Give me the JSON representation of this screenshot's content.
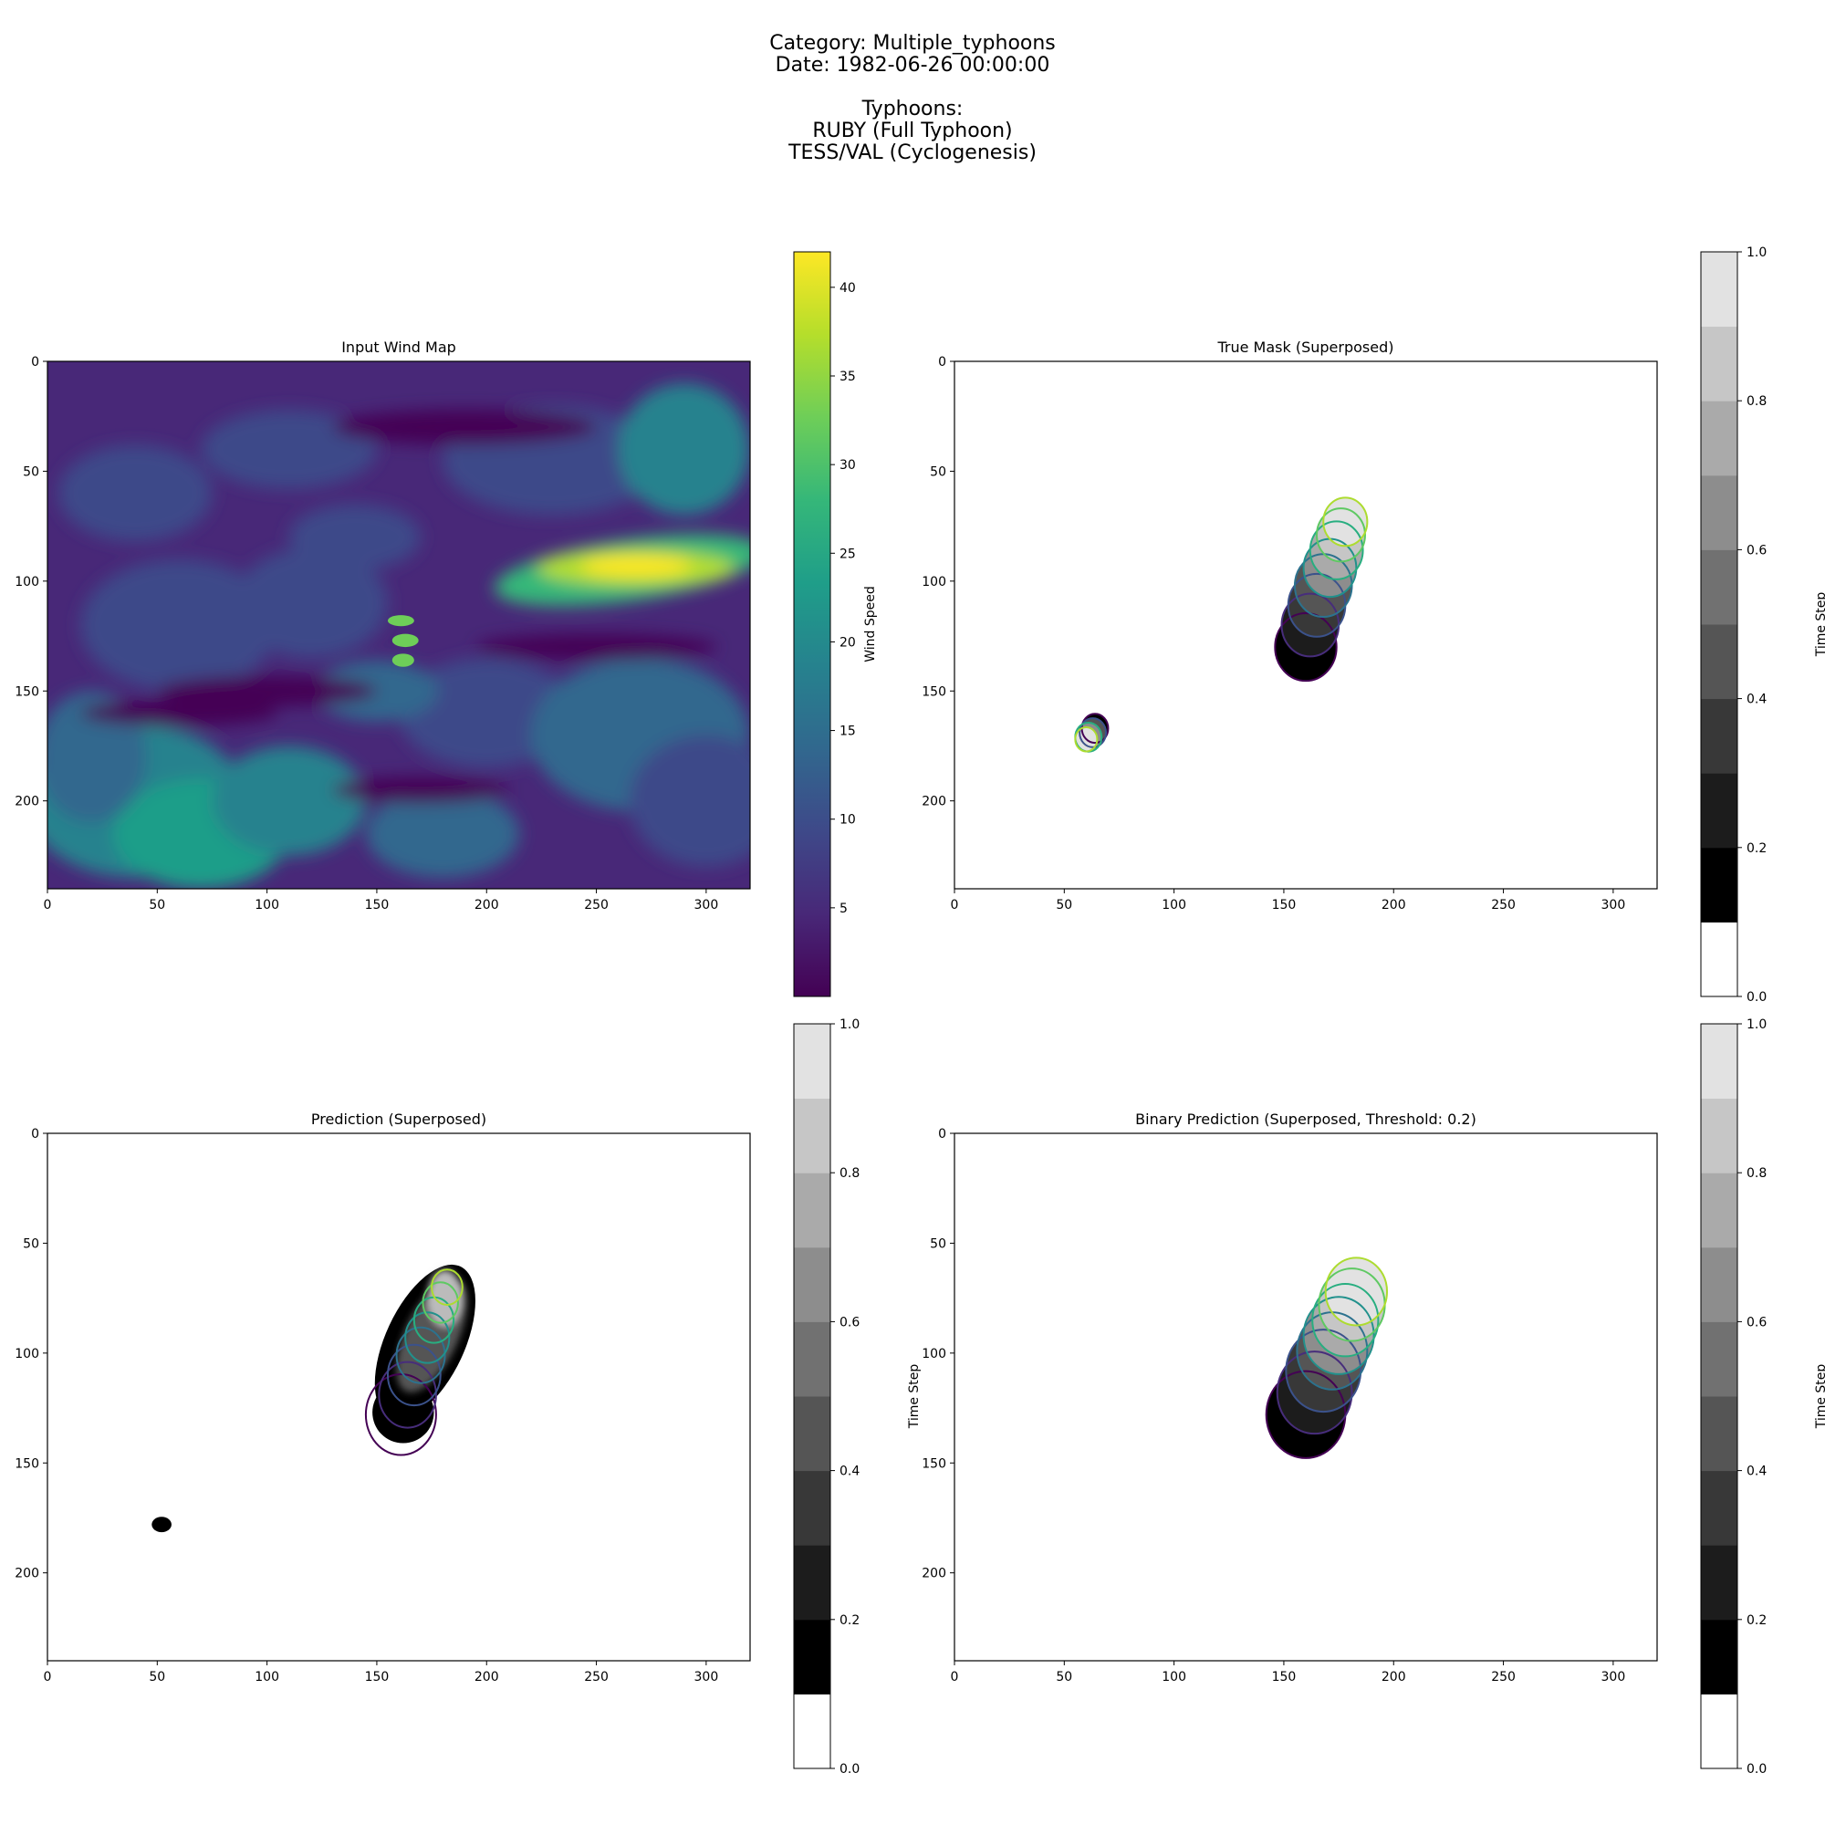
{
  "figure": {
    "title_lines": [
      "Category: Multiple_typhoons",
      "Date: 1982-06-26 00:00:00",
      "",
      "Typhoons:",
      "RUBY (Full Typhoon)",
      "TESS/VAL (Cyclogenesis)"
    ]
  },
  "colors": {
    "viridis": [
      "#440154",
      "#482878",
      "#3e4989",
      "#31688e",
      "#26828e",
      "#1f9e89",
      "#35b779",
      "#6ece58",
      "#b5de2b",
      "#fde725"
    ],
    "contour_steps": [
      "#440154",
      "#472d7b",
      "#3b528b",
      "#2c728e",
      "#21918c",
      "#28ae80",
      "#5ec962",
      "#addc30"
    ],
    "grey_bands": [
      "#ffffff",
      "#000000",
      "#1c1c1c",
      "#383838",
      "#555555",
      "#717171",
      "#8d8d8d",
      "#aaaaaa",
      "#c6c6c6",
      "#e2e2e2"
    ]
  },
  "chart_data": [
    {
      "type": "heatmap",
      "title": "Input Wind Map",
      "x_ticks": [
        0,
        50,
        100,
        150,
        200,
        250,
        300
      ],
      "y_ticks": [
        0,
        50,
        100,
        150,
        200
      ],
      "xlim": [
        0,
        320
      ],
      "ylim": [
        240,
        0
      ],
      "colormap": "viridis",
      "colorbar": {
        "label": "Wind Speed",
        "range": [
          0,
          42
        ],
        "ticks": [
          5,
          10,
          15,
          20,
          25,
          30,
          35,
          40
        ]
      },
      "features": [
        {
          "name": "jet stream",
          "x": [
            205,
            320
          ],
          "y": [
            85,
            105
          ],
          "value": 40
        },
        {
          "name": "typhoon eye ring",
          "x": 163,
          "y": 128,
          "value": 32
        },
        {
          "name": "south-west band",
          "x": [
            0,
            120
          ],
          "y": [
            170,
            235
          ],
          "value": 20
        },
        {
          "name": "north-east band",
          "x": [
            260,
            320
          ],
          "y": [
            20,
            60
          ],
          "value": 17
        }
      ]
    },
    {
      "type": "heatmap",
      "title": "True Mask (Superposed)",
      "x_ticks": [
        0,
        50,
        100,
        150,
        200,
        250,
        300
      ],
      "y_ticks": [
        0,
        50,
        100,
        150,
        200
      ],
      "xlim": [
        0,
        320
      ],
      "ylim": [
        240,
        0
      ],
      "colorbar": {
        "label": "Time Step",
        "range": [
          0,
          1
        ],
        "ticks": [
          0.0,
          0.2,
          0.4,
          0.6,
          0.8,
          1.0
        ],
        "bands": 10
      },
      "tracks": [
        {
          "centers_x": [
            160,
            162,
            165,
            168,
            171,
            174,
            176,
            178
          ],
          "centers_y": [
            130,
            120,
            111,
            102,
            94,
            86,
            79,
            73
          ],
          "radius": [
            14,
            13,
            13,
            13,
            12,
            12,
            11,
            10
          ]
        },
        {
          "centers_x": [
            64,
            63,
            61,
            60
          ],
          "centers_y": [
            167,
            169,
            171,
            172
          ],
          "radius": [
            6,
            6,
            6,
            5
          ]
        }
      ]
    },
    {
      "type": "heatmap",
      "title": "Prediction (Superposed)",
      "x_ticks": [
        0,
        50,
        100,
        150,
        200,
        250,
        300
      ],
      "y_ticks": [
        0,
        50,
        100,
        150,
        200
      ],
      "xlim": [
        0,
        320
      ],
      "ylim": [
        240,
        0
      ],
      "colorbar": {
        "label": "Time Step",
        "range": [
          0,
          1
        ],
        "ticks": [
          0.0,
          0.2,
          0.4,
          0.6,
          0.8,
          1.0
        ],
        "bands": 10
      },
      "blobs": [
        {
          "x": 172,
          "y": 95,
          "value": 0.55
        },
        {
          "x": 52,
          "y": 178,
          "value": 0.1
        }
      ]
    },
    {
      "type": "heatmap",
      "title": "Binary Prediction (Superposed, Threshold: 0.2)",
      "threshold": 0.2,
      "x_ticks": [
        0,
        50,
        100,
        150,
        200,
        250,
        300
      ],
      "y_ticks": [
        0,
        50,
        100,
        150,
        200
      ],
      "xlim": [
        0,
        320
      ],
      "ylim": [
        240,
        0
      ],
      "colorbar": {
        "label": "Time Step",
        "range": [
          0,
          1
        ],
        "ticks": [
          0.0,
          0.2,
          0.4,
          0.6,
          0.8,
          1.0
        ],
        "bands": 10
      },
      "tracks": [
        {
          "centers_x": [
            160,
            164,
            168,
            172,
            175,
            178,
            181,
            183
          ],
          "centers_y": [
            128,
            118,
            108,
            99,
            92,
            85,
            78,
            72
          ],
          "radius": [
            18,
            17,
            17,
            16,
            16,
            15,
            15,
            14
          ]
        }
      ]
    }
  ]
}
